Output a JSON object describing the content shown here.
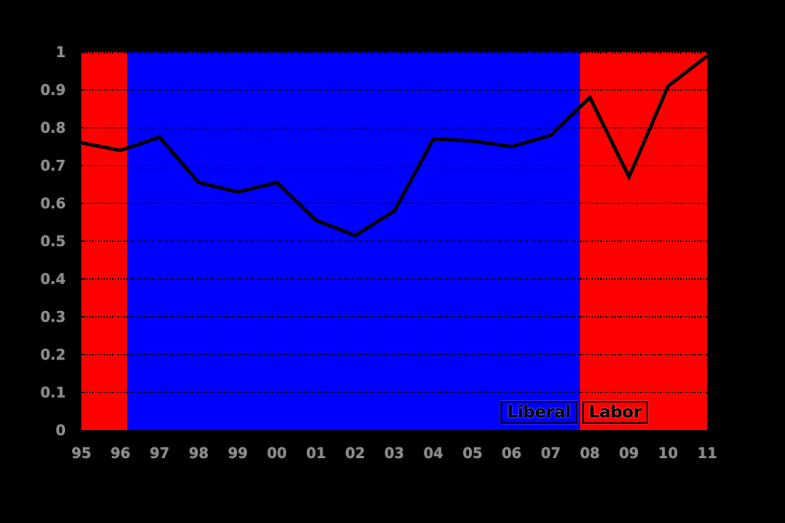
{
  "colors": {
    "background": "#000000",
    "labor_band": "#ff0000",
    "liberal_band": "#0000ff",
    "line": "#000000",
    "tick_label": "#8c8c8c",
    "annotation_text": "#000000"
  },
  "chart_data": {
    "type": "line",
    "x": [
      1995,
      1996,
      1997,
      1998,
      1999,
      2000,
      2001,
      2002,
      2003,
      2004,
      2005,
      2006,
      2007,
      2008,
      2009,
      2010,
      2011
    ],
    "x_tick_labels": [
      "95",
      "96",
      "97",
      "98",
      "99",
      "00",
      "01",
      "02",
      "03",
      "04",
      "05",
      "06",
      "07",
      "08",
      "09",
      "10",
      "11"
    ],
    "values": [
      0.76,
      0.74,
      0.775,
      0.655,
      0.63,
      0.655,
      0.555,
      0.515,
      0.58,
      0.77,
      0.765,
      0.75,
      0.78,
      0.88,
      0.67,
      0.91,
      0.99
    ],
    "line_color": "#000000",
    "line_width": 5,
    "xlim": [
      1995,
      2011
    ],
    "ylim": [
      0,
      1
    ],
    "y_ticks": [
      0,
      0.1,
      0.2,
      0.3,
      0.4,
      0.5,
      0.6,
      0.7,
      0.8,
      0.9,
      1
    ],
    "y_tick_labels": [
      "0",
      "0.1",
      "0.2",
      "0.3",
      "0.4",
      "0.5",
      "0.6",
      "0.7",
      "0.8",
      "0.9",
      "1"
    ],
    "grid": "horizontal-dotted",
    "background_bands": [
      {
        "label": "Labor",
        "color": "#ff0000",
        "from": 1995,
        "to": 1996.17
      },
      {
        "label": "Liberal",
        "color": "#0000ff",
        "from": 1996.17,
        "to": 2007.76
      },
      {
        "label": "Labor",
        "color": "#ff0000",
        "from": 2007.76,
        "to": 2011
      }
    ],
    "annotations": [
      {
        "text": "Liberal",
        "x": 2006.7,
        "y": 0.048
      },
      {
        "text": "Labor",
        "x": 2008.65,
        "y": 0.048
      }
    ]
  }
}
